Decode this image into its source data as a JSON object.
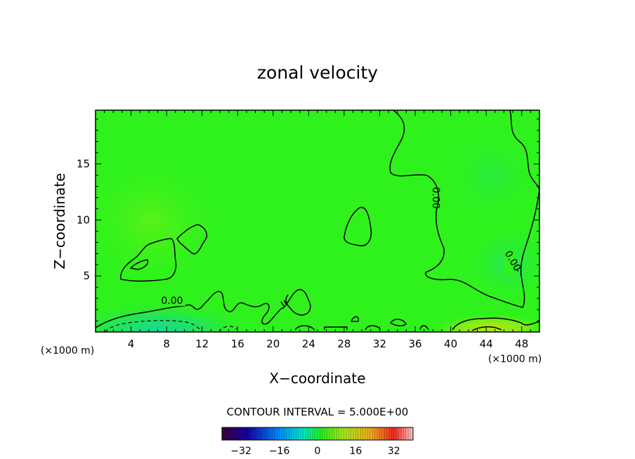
{
  "chart_data": {
    "type": "heatmap",
    "title": "zonal velocity",
    "xlabel": "X−coordinate",
    "ylabel": "Z−coordinate",
    "x_unit_left": "(×1000 m)",
    "x_unit_right": "(×1000 m)",
    "xlim": [
      0,
      50
    ],
    "ylim": [
      0,
      19.8
    ],
    "x_ticks": [
      4,
      8,
      12,
      16,
      20,
      24,
      28,
      32,
      36,
      40,
      44,
      48
    ],
    "y_ticks": [
      5,
      10,
      15
    ],
    "grid": false,
    "contour_interval_label": "CONTOUR INTERVAL = 5.000E+00",
    "contour_labels": [
      "0.00",
      "0.00",
      "0.00"
    ],
    "colorbar": {
      "min": -40,
      "max": 40,
      "ticks": [
        -32,
        -16,
        0,
        16,
        32
      ],
      "tick_labels": [
        "−32",
        "−16",
        "0",
        "16",
        "32"
      ]
    },
    "field_notes": {
      "background_value": 2,
      "local_maxima": [
        {
          "x": 7,
          "z": 6.5,
          "value": 4
        },
        {
          "x": 10,
          "z": 10,
          "value": 4
        },
        {
          "x": 45,
          "z": 0.5,
          "value": 8
        }
      ],
      "local_minima": [
        {
          "x": 7,
          "z": 0.3,
          "value": -6
        },
        {
          "x": 45,
          "z": 5.5,
          "value": -3
        },
        {
          "x": 43,
          "z": 10,
          "value": -1
        }
      ]
    }
  },
  "colors": {
    "field_base": "#2ff21c",
    "contour_line": "#000000"
  }
}
